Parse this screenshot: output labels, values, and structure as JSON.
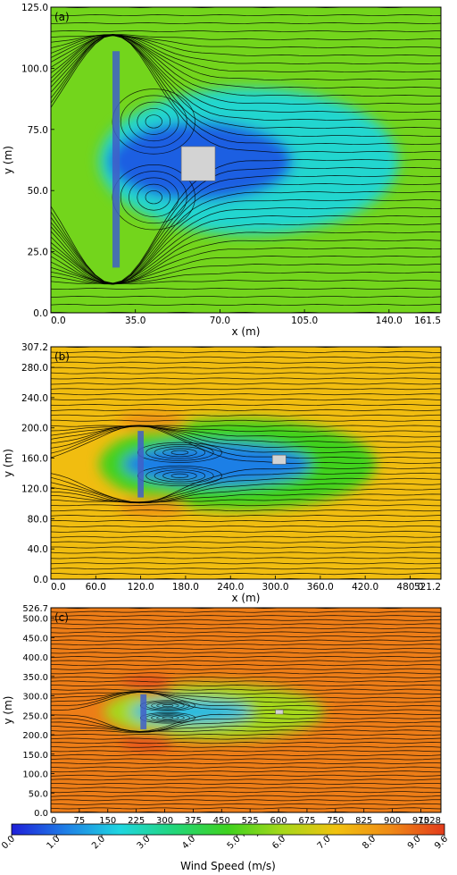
{
  "chart_data": [
    {
      "type": "streamline",
      "panel_label": "(a)",
      "xlabel": "x (m)",
      "ylabel": "y (m)",
      "xlim": [
        0,
        161.5
      ],
      "ylim": [
        0,
        125
      ],
      "xticks": [
        0,
        35,
        70,
        105,
        140,
        161.5
      ],
      "xtick_labels": [
        "0.0",
        "35.0",
        "70.0",
        "105.0",
        "140.0",
        "161.5"
      ],
      "yticks": [
        0,
        25,
        50,
        75,
        100,
        125
      ],
      "ytick_labels": [
        "0.0",
        "25.0",
        "50.0",
        "75.0",
        "100.0",
        "125.0"
      ],
      "background_speed": 5.4,
      "fence": {
        "x0": 25.5,
        "x1": 28.5,
        "y0": 18.5,
        "y1": 107
      },
      "obstacle": {
        "x0": 54,
        "x1": 68,
        "y0": 54,
        "y1": 68
      },
      "wake_core": {
        "cx": 62,
        "cy": 62,
        "rx": 38,
        "ry": 16,
        "speed": 0.8
      },
      "wake_outer": {
        "cx": 82,
        "cy": 62,
        "rx": 62,
        "ry": 30,
        "speed": 2.6
      },
      "high_speed_lobes": [
        {
          "cx": 55,
          "cy": 73,
          "rx": 7,
          "ry": 4,
          "speed": 7.8
        },
        {
          "cx": 55,
          "cy": 51,
          "rx": 7,
          "ry": 4,
          "speed": 7.8
        }
      ],
      "stream_count": 38
    },
    {
      "type": "streamline",
      "panel_label": "(b)",
      "xlabel": "x (m)",
      "ylabel": "y (m)",
      "xlim": [
        0,
        521.2
      ],
      "ylim": [
        0,
        307.2
      ],
      "xticks": [
        0,
        60,
        120,
        180,
        240,
        300,
        360,
        420,
        480,
        521.2
      ],
      "xtick_labels": [
        "0.0",
        "60.0",
        "120.0",
        "180.0",
        "240.0",
        "300.0",
        "360.0",
        "420.0",
        "480.0",
        "521.2"
      ],
      "yticks": [
        0,
        40,
        80,
        120,
        160,
        200,
        240,
        280,
        307.2
      ],
      "ytick_labels": [
        "0.0",
        "40.0",
        "80.0",
        "120.0",
        "160.0",
        "200.0",
        "240.0",
        "280.0",
        "307.2"
      ],
      "background_speed": 7.3,
      "fence": {
        "x0": 116,
        "x1": 124,
        "y0": 108,
        "y1": 196
      },
      "obstacle": {
        "x0": 296,
        "x1": 314,
        "y0": 152,
        "y1": 164
      },
      "wake_core": {
        "cx": 222,
        "cy": 152,
        "rx": 125,
        "ry": 28,
        "speed": 1.2
      },
      "wake_outer": {
        "cx": 250,
        "cy": 152,
        "rx": 185,
        "ry": 60,
        "speed": 4.8
      },
      "high_speed_lobes": [
        {
          "cx": 135,
          "cy": 208,
          "rx": 45,
          "ry": 12,
          "speed": 8.3
        },
        {
          "cx": 135,
          "cy": 96,
          "rx": 45,
          "ry": 12,
          "speed": 8.3
        }
      ],
      "stream_count": 44
    },
    {
      "type": "streamline",
      "panel_label": "(c)",
      "xlabel": "x (m)",
      "ylabel": "y (m)",
      "xlim": [
        0,
        1028
      ],
      "ylim": [
        0,
        526.7
      ],
      "xticks": [
        0,
        75,
        150,
        225,
        300,
        375,
        450,
        525,
        600,
        675,
        750,
        825,
        900,
        975,
        1028
      ],
      "xtick_labels": [
        "0",
        "75",
        "150",
        "225",
        "300",
        "375",
        "450",
        "525",
        "600",
        "675",
        "750",
        "825",
        "900",
        "975",
        "1028"
      ],
      "yticks": [
        0,
        50,
        100,
        150,
        200,
        250,
        300,
        350,
        400,
        450,
        500,
        526.7
      ],
      "ytick_labels": [
        "0.0",
        "50.0",
        "100.0",
        "150.0",
        "200.0",
        "250.0",
        "300.0",
        "350.0",
        "400.0",
        "450.0",
        "500.0",
        "526.7"
      ],
      "background_speed": 8.6,
      "fence": {
        "x0": 236,
        "x1": 252,
        "y0": 214,
        "y1": 304
      },
      "obstacle": {
        "x0": 592,
        "x1": 612,
        "y0": 253,
        "y1": 264
      },
      "wake_core": {
        "cx": 370,
        "cy": 259,
        "rx": 160,
        "ry": 30,
        "speed": 2.0
      },
      "wake_outer": {
        "cx": 430,
        "cy": 259,
        "rx": 290,
        "ry": 72,
        "speed": 6.0
      },
      "high_speed_lobes": [
        {
          "cx": 255,
          "cy": 325,
          "rx": 70,
          "ry": 22,
          "speed": 9.4
        },
        {
          "cx": 255,
          "cy": 185,
          "rx": 70,
          "ry": 22,
          "speed": 9.4
        }
      ],
      "stream_count": 50
    }
  ],
  "colorbar": {
    "label": "Wind Speed (m/s)",
    "min": 0,
    "max": 9.6,
    "ticks": [
      0,
      1,
      2,
      3,
      4,
      5,
      6,
      7,
      8,
      9,
      9.6
    ],
    "tick_labels": [
      "0.0",
      "1.0",
      "2.0",
      "3.0",
      "4.0",
      "5.0",
      "6.0",
      "7.0",
      "8.0",
      "9.0",
      "9.6"
    ],
    "colormap": [
      "#1f1fd9",
      "#1f7fe6",
      "#1fd6e0",
      "#22d67a",
      "#3fd21f",
      "#a6d81a",
      "#f1c20f",
      "#ef8a16",
      "#e33b1b"
    ]
  }
}
